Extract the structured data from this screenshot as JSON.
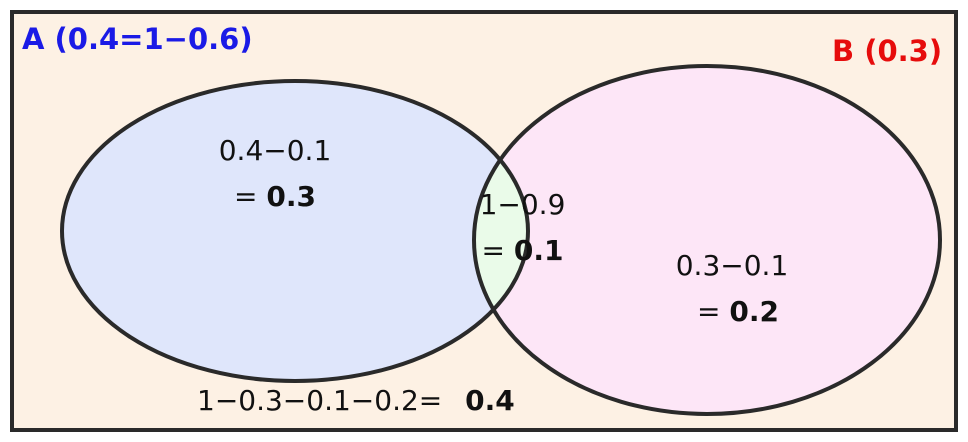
{
  "colors": {
    "background": "#fdf1e4",
    "set_a_fill": "#dfe6fb",
    "set_b_fill": "#fde6f7",
    "intersection_fill": "#eafbe9",
    "outline": "#2a2a2a",
    "set_a_label": "#1a1ae6",
    "set_b_label": "#e60c0c"
  },
  "set_a": {
    "label": "A (0.4=1−0.6)"
  },
  "set_b": {
    "label": "B (0.3)"
  },
  "region_a_only": {
    "expr": "0.4−0.1",
    "eq": "=",
    "value": "0.3"
  },
  "region_both": {
    "expr": "1−0.9",
    "eq": "=",
    "value": "0.1"
  },
  "region_b_only": {
    "expr": "0.3−0.1",
    "eq": "=",
    "value": "0.2"
  },
  "region_neither": {
    "expr": "1−0.3−0.1−0.2=",
    "value": "0.4"
  }
}
